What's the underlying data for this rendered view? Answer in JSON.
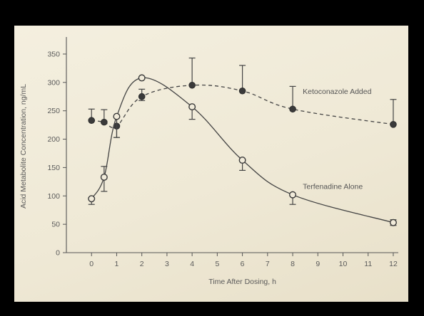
{
  "chart_data": {
    "type": "line",
    "title": "",
    "xlabel": "Time After Dosing, h",
    "ylabel": "Acid Metabolite Concentration, ng/mL",
    "xlim": [
      -1,
      12.2
    ],
    "ylim": [
      0,
      375
    ],
    "xticks": [
      0,
      1,
      2,
      3,
      4,
      5,
      6,
      7,
      8,
      9,
      10,
      11,
      12
    ],
    "yticks": [
      0,
      50,
      100,
      150,
      200,
      250,
      300,
      350
    ],
    "grid": false,
    "series": [
      {
        "name": "Ketoconazole Added",
        "style": "dashed",
        "marker": "filled-circle",
        "x": [
          0,
          0.5,
          1,
          2,
          4,
          6,
          8,
          12
        ],
        "y": [
          233,
          230,
          223,
          275,
          295,
          285,
          253,
          226
        ],
        "error_up": [
          253,
          252,
          238,
          288,
          343,
          330,
          293,
          270
        ],
        "error_down": [
          233,
          230,
          203,
          268,
          295,
          285,
          253,
          226
        ]
      },
      {
        "name": "Terfenadine Alone",
        "style": "solid",
        "marker": "open-circle",
        "x": [
          0,
          0.5,
          1,
          2,
          4,
          6,
          8,
          12
        ],
        "y": [
          95,
          133,
          240,
          308,
          257,
          163,
          102,
          53
        ],
        "error_up": [
          95,
          152,
          240,
          308,
          257,
          163,
          102,
          58
        ],
        "error_down": [
          85,
          108,
          203,
          308,
          235,
          145,
          85,
          48
        ]
      }
    ],
    "annotations": [
      {
        "text": "Ketoconazole Added",
        "x": 8.4,
        "y": 285
      },
      {
        "text": "Terfenadine Alone",
        "x": 8.4,
        "y": 117
      }
    ]
  },
  "colors": {
    "ink": "#444444",
    "paper": "#f1ebda"
  }
}
